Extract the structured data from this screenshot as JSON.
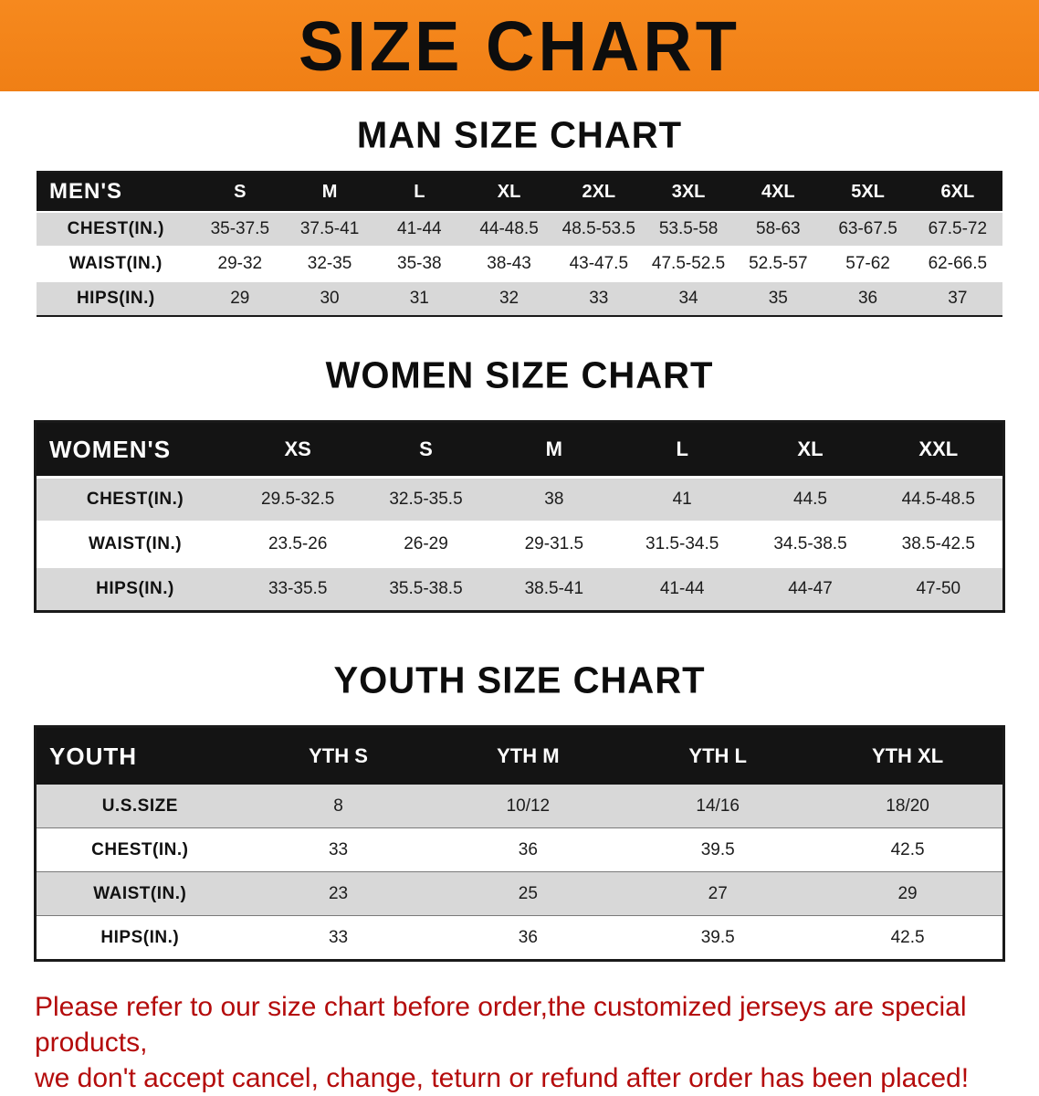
{
  "banner": {
    "title": "SIZE CHART"
  },
  "colors": {
    "banner_bg": "#F6891E",
    "header_bg": "#141414",
    "row_alt": "#D8D8D8",
    "footer_red": "#B40B0B"
  },
  "sections": [
    {
      "heading": "MAN SIZE CHART",
      "header": [
        "MEN'S",
        "S",
        "M",
        "L",
        "XL",
        "2XL",
        "3XL",
        "4XL",
        "5XL",
        "6XL"
      ],
      "rows": [
        {
          "label": "CHEST(IN.)",
          "cells": [
            "35-37.5",
            "37.5-41",
            "41-44",
            "44-48.5",
            "48.5-53.5",
            "53.5-58",
            "58-63",
            "63-67.5",
            "67.5-72"
          ]
        },
        {
          "label": "WAIST(IN.)",
          "cells": [
            "29-32",
            "32-35",
            "35-38",
            "38-43",
            "43-47.5",
            "47.5-52.5",
            "52.5-57",
            "57-62",
            "62-66.5"
          ]
        },
        {
          "label": "HIPS(IN.)",
          "cells": [
            "29",
            "30",
            "31",
            "32",
            "33",
            "34",
            "35",
            "36",
            "37"
          ]
        }
      ]
    },
    {
      "heading": "WOMEN SIZE CHART",
      "header": [
        "WOMEN'S",
        "XS",
        "S",
        "M",
        "L",
        "XL",
        "XXL"
      ],
      "rows": [
        {
          "label": "CHEST(IN.)",
          "cells": [
            "29.5-32.5",
            "32.5-35.5",
            "38",
            "41",
            "44.5",
            "44.5-48.5"
          ]
        },
        {
          "label": "WAIST(IN.)",
          "cells": [
            "23.5-26",
            "26-29",
            "29-31.5",
            "31.5-34.5",
            "34.5-38.5",
            "38.5-42.5"
          ]
        },
        {
          "label": "HIPS(IN.)",
          "cells": [
            "33-35.5",
            "35.5-38.5",
            "38.5-41",
            "41-44",
            "44-47",
            "47-50"
          ]
        }
      ]
    },
    {
      "heading": "YOUTH SIZE CHART",
      "header": [
        "YOUTH",
        "YTH S",
        "YTH M",
        "YTH L",
        "YTH XL"
      ],
      "rows": [
        {
          "label": "U.S.SIZE",
          "cells": [
            "8",
            "10/12",
            "14/16",
            "18/20"
          ]
        },
        {
          "label": "CHEST(IN.)",
          "cells": [
            "33",
            "36",
            "39.5",
            "42.5"
          ]
        },
        {
          "label": "WAIST(IN.)",
          "cells": [
            "23",
            "25",
            "27",
            "29"
          ]
        },
        {
          "label": "HIPS(IN.)",
          "cells": [
            "33",
            "36",
            "39.5",
            "42.5"
          ]
        }
      ]
    }
  ],
  "footer": {
    "line1": "Please refer to our size chart before order,the customized jerseys are special products,",
    "line2": "we don't accept cancel, change, teturn or refund after order has been placed!"
  }
}
